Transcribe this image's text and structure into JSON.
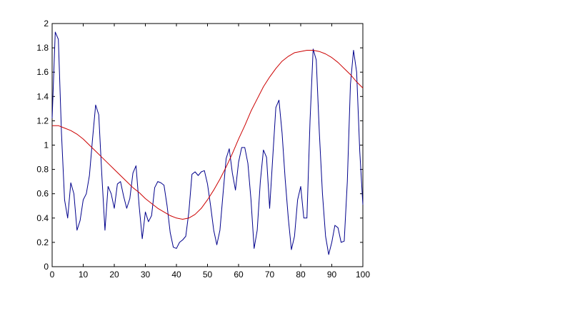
{
  "chart_data": {
    "type": "line",
    "title": "",
    "xlabel": "",
    "ylabel": "",
    "xlim": [
      0,
      100
    ],
    "ylim": [
      0,
      2
    ],
    "grid": false,
    "legend": "none",
    "x_ticks": [
      "0",
      "10",
      "20",
      "30",
      "40",
      "50",
      "60",
      "70",
      "80",
      "90",
      "100"
    ],
    "y_ticks": [
      "0",
      "0.2",
      "0.4",
      "0.6",
      "0.8",
      "1",
      "1.2",
      "1.4",
      "1.6",
      "1.8",
      "2"
    ],
    "colors": {
      "noisy": "#00008b",
      "smooth": "#cc0000",
      "axes": "#000000"
    },
    "series": [
      {
        "color": "#00008b",
        "x": [
          0,
          1,
          2,
          3,
          4,
          5,
          6,
          7,
          8,
          9,
          10,
          11,
          12,
          13,
          14,
          15,
          16,
          17,
          18,
          19,
          20,
          21,
          22,
          23,
          24,
          25,
          26,
          27,
          28,
          29,
          30,
          31,
          32,
          33,
          34,
          35,
          36,
          37,
          38,
          39,
          40,
          41,
          42,
          43,
          44,
          45,
          46,
          47,
          48,
          49,
          50,
          51,
          52,
          53,
          54,
          55,
          56,
          57,
          58,
          59,
          60,
          61,
          62,
          63,
          64,
          65,
          66,
          67,
          68,
          69,
          70,
          71,
          72,
          73,
          74,
          75,
          76,
          77,
          78,
          79,
          80,
          81,
          82,
          83,
          84,
          85,
          86,
          87,
          88,
          89,
          90,
          91,
          92,
          93,
          94,
          95,
          96,
          97,
          98,
          99,
          100
        ],
        "values": [
          1.22,
          1.93,
          1.87,
          1.1,
          0.55,
          0.4,
          0.69,
          0.6,
          0.3,
          0.38,
          0.55,
          0.6,
          0.75,
          1.05,
          1.33,
          1.25,
          0.75,
          0.3,
          0.66,
          0.6,
          0.48,
          0.68,
          0.7,
          0.58,
          0.48,
          0.56,
          0.77,
          0.83,
          0.5,
          0.23,
          0.45,
          0.37,
          0.42,
          0.65,
          0.7,
          0.69,
          0.67,
          0.5,
          0.28,
          0.16,
          0.15,
          0.2,
          0.22,
          0.25,
          0.45,
          0.76,
          0.78,
          0.75,
          0.78,
          0.79,
          0.68,
          0.5,
          0.3,
          0.18,
          0.3,
          0.6,
          0.89,
          0.97,
          0.77,
          0.63,
          0.86,
          0.98,
          0.98,
          0.85,
          0.55,
          0.15,
          0.3,
          0.7,
          0.96,
          0.9,
          0.48,
          0.9,
          1.31,
          1.37,
          1.1,
          0.72,
          0.4,
          0.14,
          0.25,
          0.55,
          0.66,
          0.4,
          0.4,
          1.2,
          1.79,
          1.7,
          1.1,
          0.6,
          0.25,
          0.1,
          0.2,
          0.34,
          0.32,
          0.2,
          0.21,
          0.7,
          1.5,
          1.78,
          1.6,
          0.95,
          0.51
        ]
      },
      {
        "color": "#cc0000",
        "x": [
          0,
          2,
          4,
          6,
          8,
          10,
          12,
          14,
          16,
          18,
          20,
          22,
          24,
          26,
          28,
          30,
          32,
          34,
          36,
          38,
          40,
          42,
          44,
          46,
          48,
          50,
          52,
          54,
          56,
          58,
          60,
          62,
          64,
          66,
          68,
          70,
          72,
          74,
          76,
          78,
          80,
          82,
          84,
          86,
          88,
          90,
          92,
          94,
          96,
          98,
          100
        ],
        "values": [
          1.16,
          1.16,
          1.14,
          1.12,
          1.09,
          1.05,
          1.0,
          0.95,
          0.9,
          0.85,
          0.8,
          0.75,
          0.7,
          0.65,
          0.61,
          0.56,
          0.52,
          0.48,
          0.45,
          0.42,
          0.4,
          0.39,
          0.4,
          0.43,
          0.48,
          0.55,
          0.63,
          0.72,
          0.82,
          0.93,
          1.05,
          1.16,
          1.28,
          1.38,
          1.48,
          1.56,
          1.63,
          1.69,
          1.73,
          1.76,
          1.77,
          1.78,
          1.78,
          1.77,
          1.75,
          1.72,
          1.68,
          1.63,
          1.58,
          1.52,
          1.47
        ]
      }
    ]
  }
}
